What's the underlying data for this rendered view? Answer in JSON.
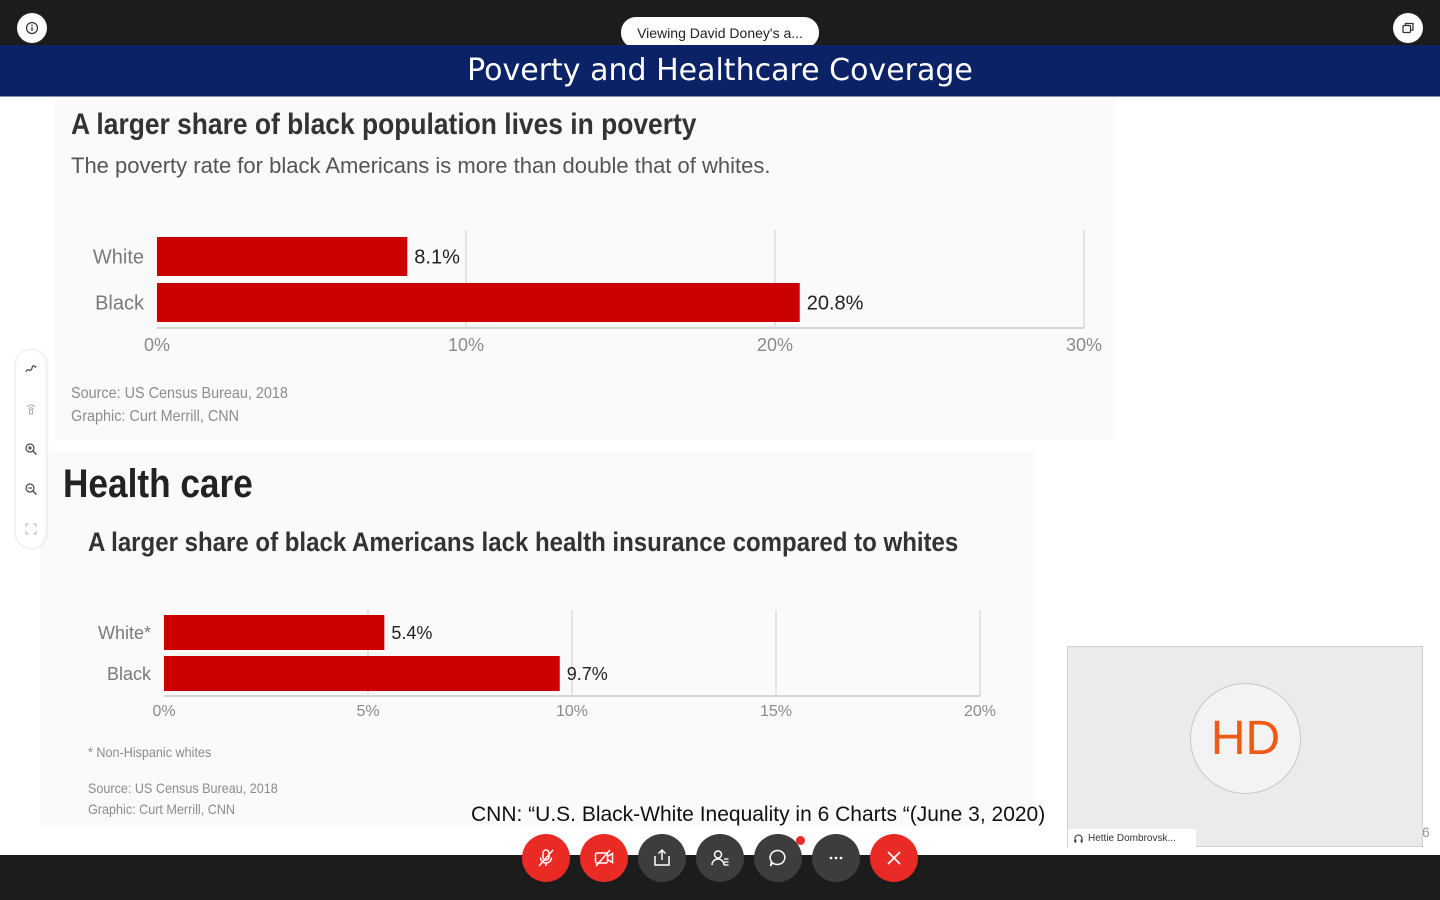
{
  "meeting": {
    "viewing_label": "Viewing David Doney's a...",
    "participant_name": "Hettie Dombrovsk...",
    "participant_initials": "HD",
    "page_number": "6",
    "controls": [
      "mute-microphone",
      "stop-video",
      "share",
      "participants",
      "chat",
      "more",
      "leave"
    ],
    "accent_red": "#ea2a25"
  },
  "slide": {
    "title": "Poverty and Healthcare Coverage",
    "header_color": "#0b2366",
    "section_heading": "Health care",
    "citation": "CNN:  “U.S. Black-White Inequality in 6 Charts “(June 3, 2020)",
    "poverty": {
      "title": "A larger share of black population lives in poverty",
      "subtitle": "The poverty rate for black Americans is more than double that of whites.",
      "source_line1": "Source: US Census Bureau, 2018",
      "source_line2": "Graphic: Curt Merrill, CNN"
    },
    "health": {
      "title": "A larger share of black Americans lack health insurance compared to whites",
      "footnote": "* Non-Hispanic whites",
      "source_line1": "Source: US Census Bureau, 2018",
      "source_line2": "Graphic: Curt Merrill, CNN"
    }
  },
  "chart_data": [
    {
      "type": "bar",
      "orientation": "horizontal",
      "categories": [
        "White",
        "Black"
      ],
      "values": [
        8.1,
        20.8
      ],
      "value_labels": [
        "8.1%",
        "20.8%"
      ],
      "xlim": [
        0,
        30
      ],
      "ticks": [
        "0%",
        "10%",
        "20%",
        "30%"
      ],
      "tick_values": [
        0,
        10,
        20,
        30
      ],
      "grid": true,
      "color": "#cc0000"
    },
    {
      "type": "bar",
      "orientation": "horizontal",
      "categories": [
        "White*",
        "Black"
      ],
      "values": [
        5.4,
        9.7
      ],
      "value_labels": [
        "5.4%",
        "9.7%"
      ],
      "xlim": [
        0,
        20
      ],
      "ticks": [
        "0%",
        "5%",
        "10%",
        "15%",
        "20%"
      ],
      "tick_values": [
        0,
        5,
        10,
        15,
        20
      ],
      "grid": true,
      "color": "#cc0000"
    }
  ]
}
